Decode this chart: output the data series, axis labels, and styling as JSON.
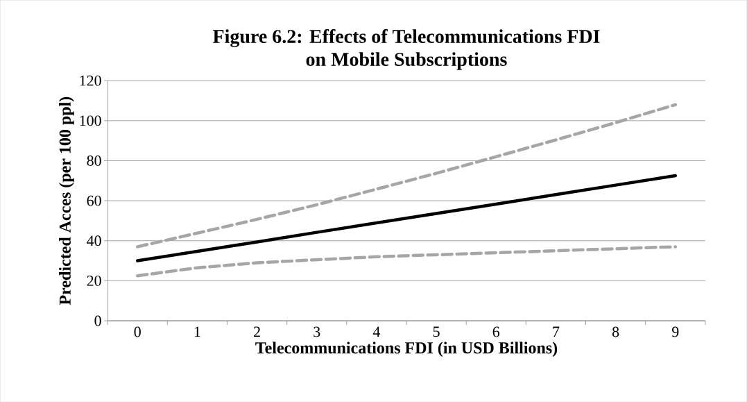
{
  "chart_data": {
    "type": "line",
    "title": "Figure 6.2: Effects of Telecommunications FDI\non Mobile Subscriptions",
    "xlabel": "Telecommunications FDI (in USD Billions)",
    "ylabel": "Predicted Acces (per 100 ppl)",
    "categories": [
      "0",
      "1",
      "2",
      "3",
      "4",
      "5",
      "6",
      "7",
      "8",
      "9"
    ],
    "series": [
      {
        "color": "#a6a6a6",
        "line_style": "dashed",
        "values": [
          37,
          43.8,
          50.7,
          58,
          65.8,
          73.7,
          82,
          90.4,
          99,
          108
        ]
      },
      {
        "color": "#000000",
        "line_style": "solid",
        "values": [
          30,
          34.7,
          39.4,
          44.2,
          48.9,
          53.6,
          58.3,
          63.1,
          67.8,
          72.5
        ]
      },
      {
        "color": "#a6a6a6",
        "line_style": "dashed",
        "values": [
          22.5,
          26.5,
          29,
          30.5,
          32,
          33,
          34,
          35,
          36,
          37
        ]
      }
    ],
    "ylim": [
      0,
      120
    ],
    "yticks": [
      0,
      20,
      40,
      60,
      80,
      100,
      120
    ],
    "grid": "y",
    "marker": "none"
  }
}
